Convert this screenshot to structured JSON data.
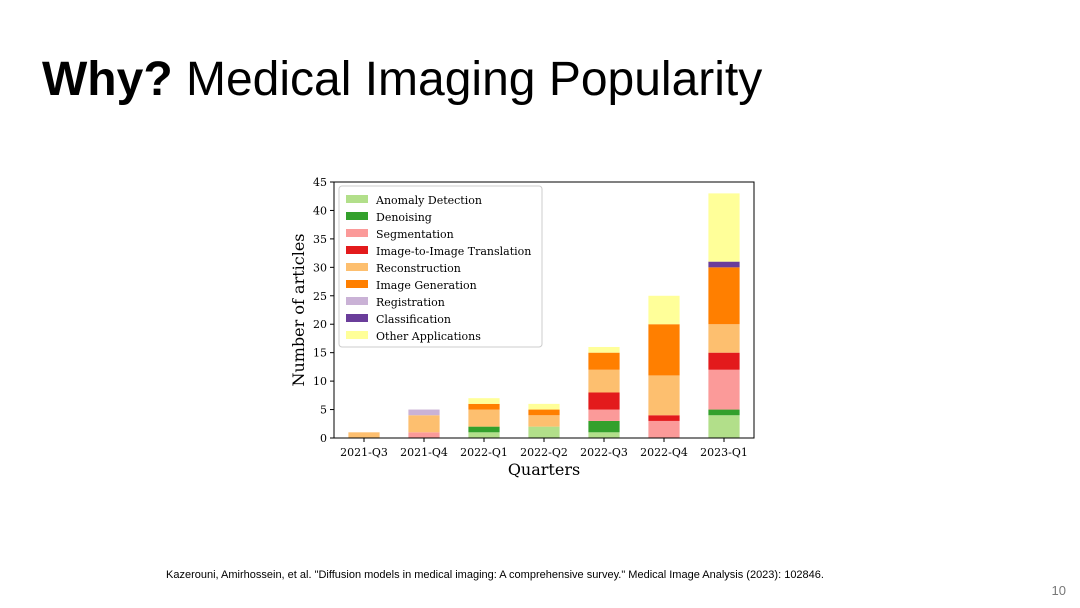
{
  "slide": {
    "title_bold": "Why?",
    "title_rest": "Medical Imaging Popularity",
    "citation": "Kazerouni, Amirhossein, et al. \"Diffusion models in medical imaging: A comprehensive survey.\" Medical Image Analysis (2023): 102846.",
    "page_number": "10"
  },
  "chart_data": {
    "type": "bar",
    "stacked": true,
    "categories": [
      "2021-Q3",
      "2021-Q4",
      "2022-Q1",
      "2022-Q2",
      "2022-Q3",
      "2022-Q4",
      "2023-Q1"
    ],
    "xlabel": "Quarters",
    "ylabel": "Number of articles",
    "ylim": [
      0,
      45
    ],
    "yticks": [
      0,
      5,
      10,
      15,
      20,
      25,
      30,
      35,
      40,
      45
    ],
    "legend_position": "top-left",
    "grid": false,
    "series": [
      {
        "name": "Anomaly Detection",
        "color": "#b2df8a",
        "values": [
          0,
          0,
          1,
          2,
          1,
          0,
          4
        ]
      },
      {
        "name": "Denoising",
        "color": "#33a02c",
        "values": [
          0,
          0,
          1,
          0,
          2,
          0,
          1
        ]
      },
      {
        "name": "Segmentation",
        "color": "#fb9a99",
        "values": [
          0,
          1,
          0,
          0,
          2,
          3,
          7
        ]
      },
      {
        "name": "Image-to-Image Translation",
        "color": "#e31a1c",
        "values": [
          0,
          0,
          0,
          0,
          3,
          1,
          3
        ]
      },
      {
        "name": "Reconstruction",
        "color": "#fdbf6f",
        "values": [
          1,
          3,
          3,
          2,
          4,
          7,
          5
        ]
      },
      {
        "name": "Image Generation",
        "color": "#ff7f00",
        "values": [
          0,
          0,
          1,
          1,
          3,
          9,
          10
        ]
      },
      {
        "name": "Registration",
        "color": "#cab2d6",
        "values": [
          0,
          1,
          0,
          0,
          0,
          0,
          0
        ]
      },
      {
        "name": "Classification",
        "color": "#6a3d9a",
        "values": [
          0,
          0,
          0,
          0,
          0,
          0,
          1
        ]
      },
      {
        "name": "Other Applications",
        "color": "#ffff99",
        "values": [
          0,
          0,
          1,
          1,
          1,
          5,
          12
        ]
      }
    ]
  }
}
